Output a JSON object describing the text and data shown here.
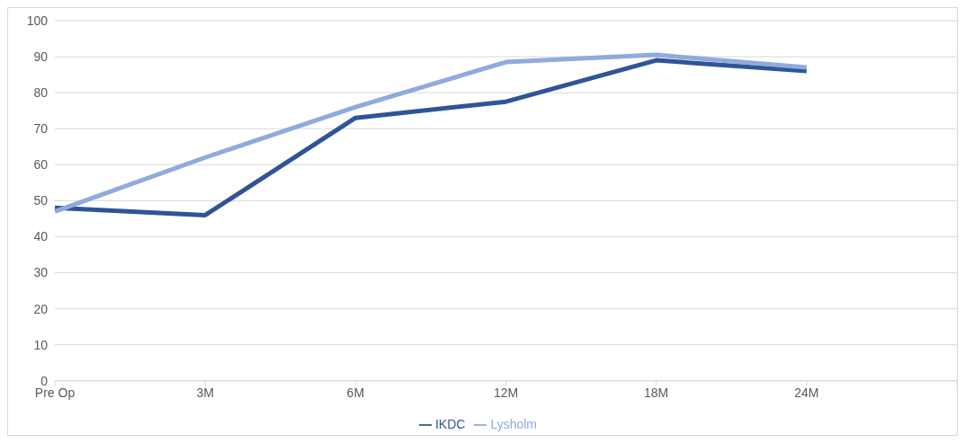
{
  "chart_data": {
    "type": "line",
    "categories": [
      "Pre Op",
      "3M",
      "6M",
      "12M",
      "18M",
      "24M",
      null
    ],
    "series": [
      {
        "name": "IKDC",
        "color": "#2f5597",
        "values": [
          48,
          46,
          73,
          77.5,
          89,
          86,
          null
        ]
      },
      {
        "name": "Lysholm",
        "color": "#8faadc",
        "values": [
          47,
          62,
          76,
          88.5,
          90.5,
          87,
          null
        ]
      }
    ],
    "ylim": [
      0,
      100
    ],
    "yticks": [
      0,
      10,
      20,
      30,
      40,
      50,
      60,
      70,
      80,
      90,
      100
    ],
    "grid": "y",
    "legend": "bottom",
    "marker": "none",
    "line_style": "solid"
  }
}
